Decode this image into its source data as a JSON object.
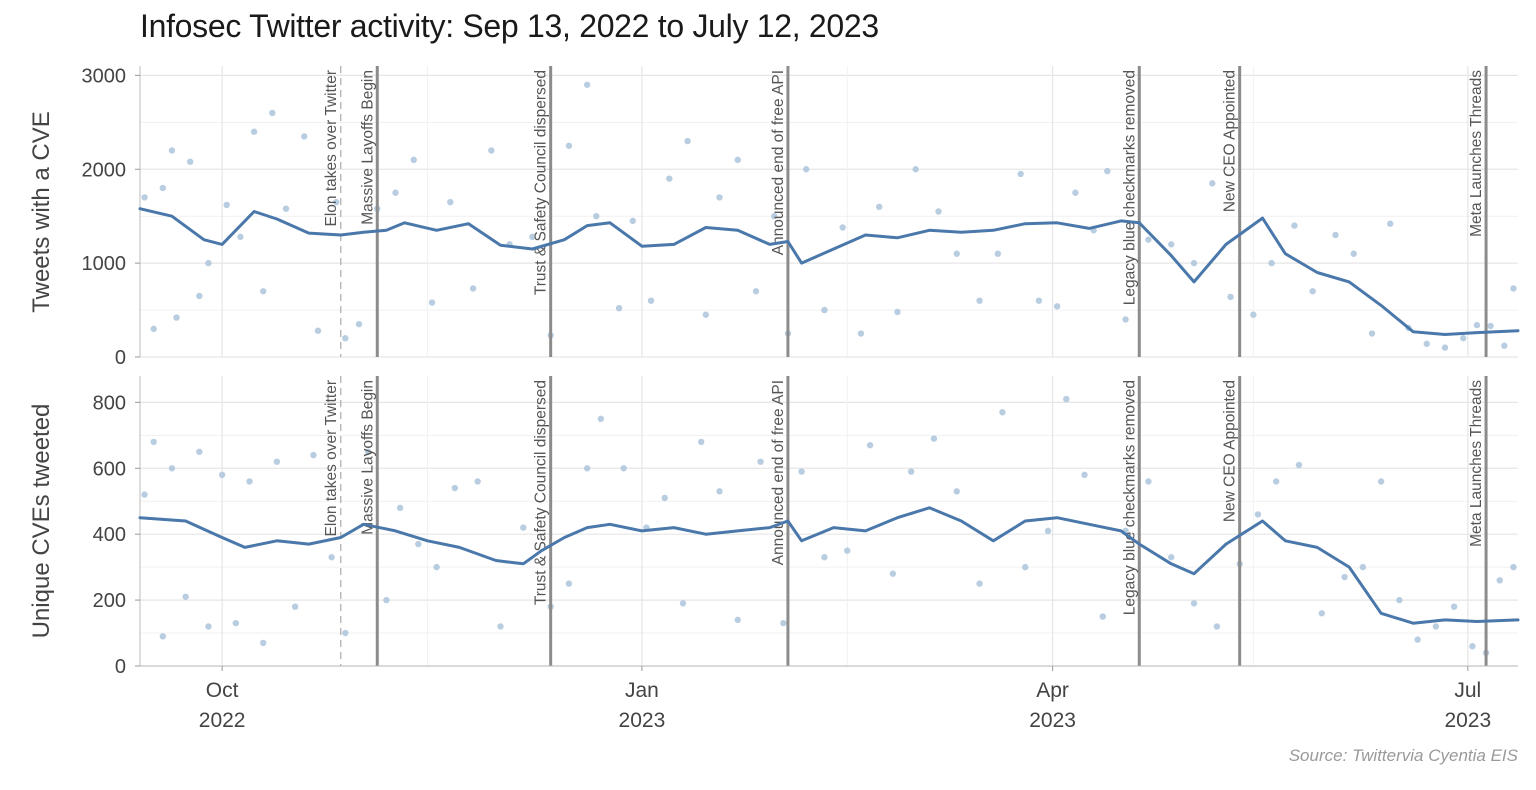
{
  "title": "Infosec Twitter activity: Sep 13, 2022 to July 12, 2023",
  "source": "Source: Twittervia Cyentia EIS",
  "colors": {
    "line": "#4a78ab",
    "points": "#adc4dc",
    "event_line": "#8c8c8c",
    "grid": "#e6e6e6"
  },
  "chart_data": [
    {
      "type": "line",
      "ylabel": "Tweets with a CVE",
      "ylim": [
        0,
        3100
      ],
      "yticks": [
        0,
        1000,
        2000,
        3000
      ],
      "xlim": [
        "2022-09-13",
        "2023-07-12"
      ],
      "xticks": [
        {
          "date": "2022-10-01",
          "label": "Oct",
          "year": "2022"
        },
        {
          "date": "2023-01-01",
          "label": "Jan",
          "year": "2023"
        },
        {
          "date": "2023-04-01",
          "label": "Apr",
          "year": "2023"
        },
        {
          "date": "2023-07-01",
          "label": "Jul",
          "year": "2023"
        }
      ],
      "grid": true,
      "series": [
        {
          "style": "smoothed-line",
          "x": [
            "2022-09-13",
            "2022-09-20",
            "2022-09-27",
            "2022-10-01",
            "2022-10-08",
            "2022-10-13",
            "2022-10-20",
            "2022-10-27",
            "2022-11-01",
            "2022-11-06",
            "2022-11-10",
            "2022-11-17",
            "2022-11-24",
            "2022-12-01",
            "2022-12-08",
            "2022-12-15",
            "2022-12-20",
            "2022-12-25",
            "2023-01-01",
            "2023-01-08",
            "2023-01-15",
            "2023-01-22",
            "2023-01-29",
            "2023-02-02",
            "2023-02-05",
            "2023-02-12",
            "2023-02-19",
            "2023-02-26",
            "2023-03-05",
            "2023-03-12",
            "2023-03-19",
            "2023-03-26",
            "2023-04-02",
            "2023-04-09",
            "2023-04-16",
            "2023-04-20",
            "2023-04-27",
            "2023-05-02",
            "2023-05-09",
            "2023-05-17",
            "2023-05-22",
            "2023-05-29",
            "2023-06-05",
            "2023-06-12",
            "2023-06-19",
            "2023-06-26",
            "2023-07-03",
            "2023-07-12"
          ],
          "y": [
            1580,
            1500,
            1250,
            1200,
            1550,
            1470,
            1320,
            1300,
            1330,
            1350,
            1430,
            1350,
            1420,
            1190,
            1150,
            1250,
            1400,
            1430,
            1180,
            1200,
            1380,
            1350,
            1200,
            1230,
            1000,
            1150,
            1300,
            1270,
            1350,
            1330,
            1350,
            1420,
            1430,
            1370,
            1450,
            1430,
            1080,
            800,
            1200,
            1480,
            1100,
            900,
            800,
            550,
            270,
            240,
            260,
            280
          ]
        },
        {
          "style": "daily-points",
          "x": [
            "2022-09-14",
            "2022-09-16",
            "2022-09-18",
            "2022-09-20",
            "2022-09-21",
            "2022-09-24",
            "2022-09-26",
            "2022-09-28",
            "2022-10-02",
            "2022-10-05",
            "2022-10-08",
            "2022-10-10",
            "2022-10-12",
            "2022-10-15",
            "2022-10-19",
            "2022-10-22",
            "2022-10-26",
            "2022-10-28",
            "2022-10-31",
            "2022-11-04",
            "2022-11-08",
            "2022-11-12",
            "2022-11-16",
            "2022-11-20",
            "2022-11-25",
            "2022-11-29",
            "2022-12-03",
            "2022-12-08",
            "2022-12-12",
            "2022-12-16",
            "2022-12-20",
            "2022-12-22",
            "2022-12-27",
            "2022-12-30",
            "2023-01-03",
            "2023-01-07",
            "2023-01-11",
            "2023-01-15",
            "2023-01-18",
            "2023-01-22",
            "2023-01-26",
            "2023-01-30",
            "2023-02-02",
            "2023-02-06",
            "2023-02-10",
            "2023-02-14",
            "2023-02-18",
            "2023-02-22",
            "2023-02-26",
            "2023-03-02",
            "2023-03-07",
            "2023-03-11",
            "2023-03-16",
            "2023-03-20",
            "2023-03-25",
            "2023-03-29",
            "2023-04-02",
            "2023-04-06",
            "2023-04-10",
            "2023-04-13",
            "2023-04-17",
            "2023-04-22",
            "2023-04-27",
            "2023-05-02",
            "2023-05-06",
            "2023-05-10",
            "2023-05-15",
            "2023-05-19",
            "2023-05-24",
            "2023-05-28",
            "2023-06-02",
            "2023-06-06",
            "2023-06-10",
            "2023-06-14",
            "2023-06-18",
            "2023-06-22",
            "2023-06-26",
            "2023-06-30",
            "2023-07-03",
            "2023-07-06",
            "2023-07-09",
            "2023-07-11"
          ],
          "y": [
            1700,
            300,
            1800,
            2200,
            420,
            2080,
            650,
            1000,
            1620,
            1280,
            2400,
            700,
            2600,
            1580,
            2350,
            280,
            1650,
            200,
            350,
            1580,
            1750,
            2100,
            580,
            1650,
            730,
            2200,
            1200,
            1280,
            230,
            2250,
            2900,
            1500,
            520,
            1450,
            600,
            1900,
            2300,
            450,
            1700,
            2100,
            700,
            1500,
            250,
            2000,
            500,
            1380,
            250,
            1600,
            480,
            2000,
            1550,
            1100,
            600,
            1100,
            1950,
            600,
            540,
            1750,
            1350,
            1980,
            400,
            1250,
            1200,
            1000,
            1850,
            640,
            450,
            1000,
            1400,
            700,
            1300,
            1100,
            250,
            1420,
            310,
            140,
            100,
            200,
            340,
            330,
            120,
            730
          ]
        }
      ]
    },
    {
      "type": "line",
      "ylabel": "Unique CVEs tweeted",
      "ylim": [
        0,
        880
      ],
      "yticks": [
        0,
        200,
        400,
        600,
        800
      ],
      "xlim": [
        "2022-09-13",
        "2023-07-12"
      ],
      "grid": true,
      "series": [
        {
          "style": "smoothed-line",
          "x": [
            "2022-09-13",
            "2022-09-23",
            "2022-10-01",
            "2022-10-06",
            "2022-10-13",
            "2022-10-20",
            "2022-10-27",
            "2022-11-01",
            "2022-11-08",
            "2022-11-15",
            "2022-11-22",
            "2022-11-30",
            "2022-12-06",
            "2022-12-10",
            "2022-12-15",
            "2022-12-20",
            "2022-12-25",
            "2023-01-01",
            "2023-01-08",
            "2023-01-15",
            "2023-01-22",
            "2023-01-29",
            "2023-02-02",
            "2023-02-05",
            "2023-02-12",
            "2023-02-19",
            "2023-02-26",
            "2023-03-05",
            "2023-03-12",
            "2023-03-19",
            "2023-03-26",
            "2023-04-02",
            "2023-04-09",
            "2023-04-16",
            "2023-04-20",
            "2023-04-27",
            "2023-05-02",
            "2023-05-09",
            "2023-05-17",
            "2023-05-22",
            "2023-05-29",
            "2023-06-05",
            "2023-06-12",
            "2023-06-19",
            "2023-06-26",
            "2023-07-03",
            "2023-07-12"
          ],
          "y": [
            450,
            440,
            390,
            360,
            380,
            370,
            390,
            430,
            410,
            380,
            360,
            320,
            310,
            350,
            390,
            420,
            430,
            410,
            420,
            400,
            410,
            420,
            440,
            380,
            420,
            410,
            450,
            480,
            440,
            380,
            440,
            450,
            430,
            410,
            370,
            310,
            280,
            370,
            440,
            380,
            360,
            300,
            160,
            130,
            140,
            135,
            140
          ]
        },
        {
          "style": "daily-points",
          "x": [
            "2022-09-14",
            "2022-09-16",
            "2022-09-18",
            "2022-09-20",
            "2022-09-23",
            "2022-09-26",
            "2022-09-28",
            "2022-10-01",
            "2022-10-04",
            "2022-10-07",
            "2022-10-10",
            "2022-10-13",
            "2022-10-17",
            "2022-10-21",
            "2022-10-25",
            "2022-10-28",
            "2022-11-02",
            "2022-11-06",
            "2022-11-09",
            "2022-11-13",
            "2022-11-17",
            "2022-11-21",
            "2022-11-26",
            "2022-12-01",
            "2022-12-06",
            "2022-12-12",
            "2022-12-16",
            "2022-12-20",
            "2022-12-23",
            "2022-12-28",
            "2023-01-02",
            "2023-01-06",
            "2023-01-10",
            "2023-01-14",
            "2023-01-18",
            "2023-01-22",
            "2023-01-27",
            "2023-02-01",
            "2023-02-05",
            "2023-02-10",
            "2023-02-15",
            "2023-02-20",
            "2023-02-25",
            "2023-03-01",
            "2023-03-06",
            "2023-03-11",
            "2023-03-16",
            "2023-03-21",
            "2023-03-26",
            "2023-03-31",
            "2023-04-04",
            "2023-04-08",
            "2023-04-12",
            "2023-04-17",
            "2023-04-22",
            "2023-04-27",
            "2023-05-02",
            "2023-05-07",
            "2023-05-12",
            "2023-05-16",
            "2023-05-20",
            "2023-05-25",
            "2023-05-30",
            "2023-06-04",
            "2023-06-08",
            "2023-06-12",
            "2023-06-16",
            "2023-06-20",
            "2023-06-24",
            "2023-06-28",
            "2023-07-02",
            "2023-07-05",
            "2023-07-08",
            "2023-07-11"
          ],
          "y": [
            520,
            680,
            90,
            600,
            210,
            650,
            120,
            580,
            130,
            560,
            70,
            620,
            180,
            640,
            330,
            100,
            650,
            200,
            480,
            370,
            300,
            540,
            560,
            120,
            420,
            180,
            250,
            600,
            750,
            600,
            420,
            510,
            190,
            680,
            530,
            140,
            620,
            130,
            590,
            330,
            350,
            670,
            280,
            590,
            690,
            530,
            250,
            770,
            300,
            410,
            810,
            580,
            150,
            410,
            560,
            330,
            190,
            120,
            310,
            460,
            560,
            610,
            160,
            270,
            300,
            560,
            200,
            80,
            120,
            180,
            60,
            40,
            260,
            300
          ]
        }
      ]
    }
  ],
  "events": [
    {
      "date": "2022-10-27",
      "label": "Elon takes over Twitter",
      "dashed": true
    },
    {
      "date": "2022-11-04",
      "label": "Massive Layoffs Begin",
      "dashed": false
    },
    {
      "date": "2022-12-12",
      "label": "Trust & Safety Council dispersed",
      "dashed": false
    },
    {
      "date": "2023-02-02",
      "label": "Announced end of free API",
      "dashed": false
    },
    {
      "date": "2023-04-20",
      "label": "Legacy blue checkmarks removed",
      "dashed": false
    },
    {
      "date": "2023-05-12",
      "label": "New CEO Appointed",
      "dashed": false
    },
    {
      "date": "2023-07-05",
      "label": "Meta Launches Threads",
      "dashed": false
    }
  ]
}
